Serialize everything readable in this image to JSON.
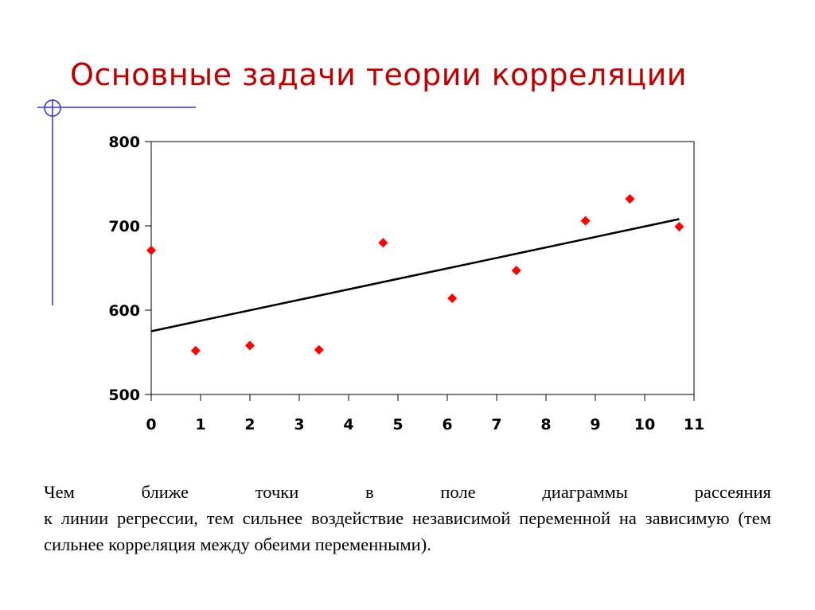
{
  "slide": {
    "title": "Основные задачи теории корреляции",
    "title_color": "#c00000",
    "decor_color": "#3333cc",
    "body_line1_words": [
      "Чем",
      "ближе",
      "точки",
      "в",
      "поле",
      "диаграммы",
      "рассеяния"
    ],
    "body_rest": "к линии регрессии, тем сильнее воздействие независимой переменной на зависимую (тем сильнее корреляция между обеими переменными)."
  },
  "chart_data": {
    "type": "scatter",
    "title": "",
    "xlabel": "",
    "ylabel": "",
    "xlim": [
      0,
      11
    ],
    "ylim": [
      500,
      800
    ],
    "x_ticks": [
      "0",
      "1",
      "2",
      "3",
      "4",
      "5",
      "6",
      "7",
      "8",
      "9",
      "10",
      "11"
    ],
    "y_ticks": [
      "500",
      "600",
      "700",
      "800"
    ],
    "grid": false,
    "legend": null,
    "series": [
      {
        "name": "points",
        "marker": "diamond",
        "color": "#ff0000",
        "x": [
          0,
          0.9,
          2.0,
          3.4,
          4.7,
          6.1,
          7.4,
          8.8,
          9.7,
          10.7
        ],
        "y": [
          671,
          552,
          558,
          553,
          680,
          614,
          647,
          706,
          732,
          699
        ]
      },
      {
        "name": "regression line",
        "type": "line",
        "color": "#000000",
        "x": [
          0,
          10.7
        ],
        "y": [
          575,
          708
        ]
      }
    ]
  }
}
